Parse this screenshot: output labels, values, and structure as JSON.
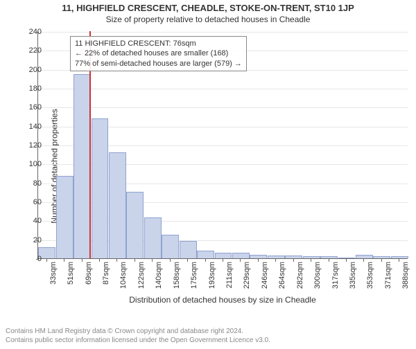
{
  "title": "11, HIGHFIELD CRESCENT, CHEADLE, STOKE-ON-TRENT, ST10 1JP",
  "subtitle": "Size of property relative to detached houses in Cheadle",
  "chart": {
    "type": "histogram",
    "ylabel": "Number of detached properties",
    "xlabel": "Distribution of detached houses by size in Cheadle",
    "ylim": [
      0,
      240
    ],
    "ytick_step": 20,
    "bar_fill": "#c9d3ea",
    "bar_stroke": "#8fa2cf",
    "grid_color": "#e6e6e6",
    "axis_color": "#666666",
    "vline_color": "#cc3333",
    "vline_at_category_index": 2.4,
    "categories": [
      "33sqm",
      "51sqm",
      "69sqm",
      "87sqm",
      "104sqm",
      "122sqm",
      "140sqm",
      "158sqm",
      "175sqm",
      "193sqm",
      "211sqm",
      "229sqm",
      "246sqm",
      "264sqm",
      "282sqm",
      "300sqm",
      "317sqm",
      "335sqm",
      "353sqm",
      "371sqm",
      "388sqm"
    ],
    "values": [
      12,
      87,
      195,
      148,
      112,
      70,
      43,
      25,
      18,
      8,
      6,
      6,
      4,
      3,
      3,
      2,
      2,
      1,
      4,
      2,
      2
    ],
    "annotation": {
      "lines": [
        "11 HIGHFIELD CRESCENT: 76sqm",
        "← 22% of detached houses are smaller (168)",
        "77% of semi-detached houses are larger (579) →"
      ]
    }
  },
  "footer": {
    "line1": "Contains HM Land Registry data © Crown copyright and database right 2024.",
    "line2": "Contains public sector information licensed under the Open Government Licence v3.0."
  }
}
